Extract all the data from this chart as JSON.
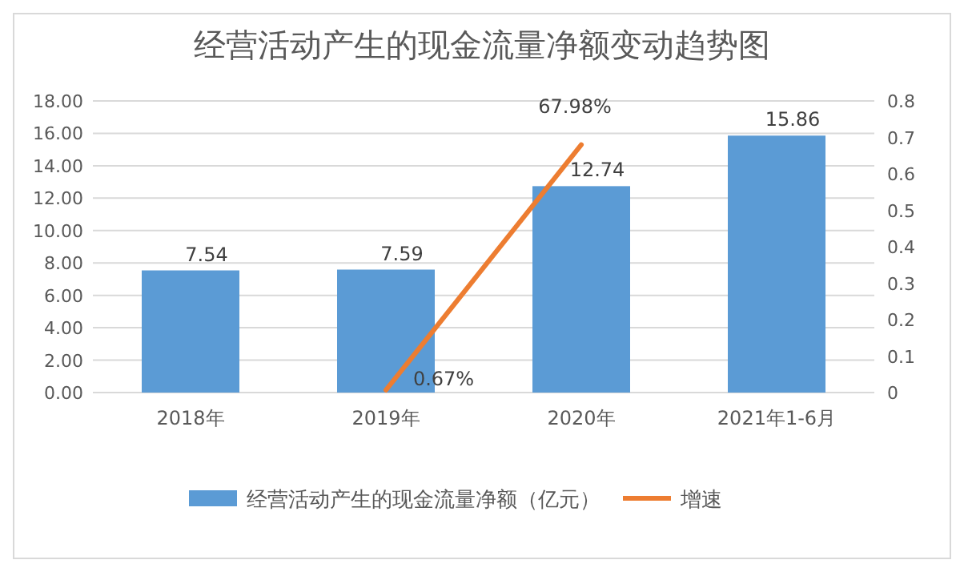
{
  "chart_data": {
    "type": "bar",
    "title": "经营活动产生的现金流量净额变动趋势图",
    "categories": [
      "2018年",
      "2019年",
      "2020年",
      "2021年1-6月"
    ],
    "series": [
      {
        "name": "经营活动产生的现金流量净额（亿元）",
        "color": "#5b9bd5",
        "values": [
          7.54,
          7.59,
          12.74,
          15.86
        ],
        "value_labels": [
          "7.54",
          "7.59",
          "12.74",
          "15.86"
        ]
      },
      {
        "name": "增速",
        "type": "line",
        "axis": "y2",
        "color": "#ed7d31",
        "values": [
          null,
          0.0067,
          0.6798,
          null
        ],
        "value_labels": [
          null,
          "0.67%",
          "67.98%",
          null
        ]
      }
    ],
    "ylim": [
      0,
      18
    ],
    "yticks": [
      {
        "value": 0,
        "label": "0.00"
      },
      {
        "value": 2,
        "label": "2.00"
      },
      {
        "value": 4,
        "label": "4.00"
      },
      {
        "value": 6,
        "label": "6.00"
      },
      {
        "value": 8,
        "label": "8.00"
      },
      {
        "value": 10,
        "label": "10.00"
      },
      {
        "value": 12,
        "label": "12.00"
      },
      {
        "value": 14,
        "label": "14.00"
      },
      {
        "value": 16,
        "label": "16.00"
      },
      {
        "value": 18,
        "label": "18.00"
      }
    ],
    "y2lim": [
      0,
      0.8
    ],
    "y2ticks": [
      0,
      0.1,
      0.2,
      0.3,
      0.4,
      0.5,
      0.6,
      0.7,
      0.8
    ],
    "grid": "y",
    "legend": "bottom",
    "marker": "none",
    "line_style": "solid"
  }
}
